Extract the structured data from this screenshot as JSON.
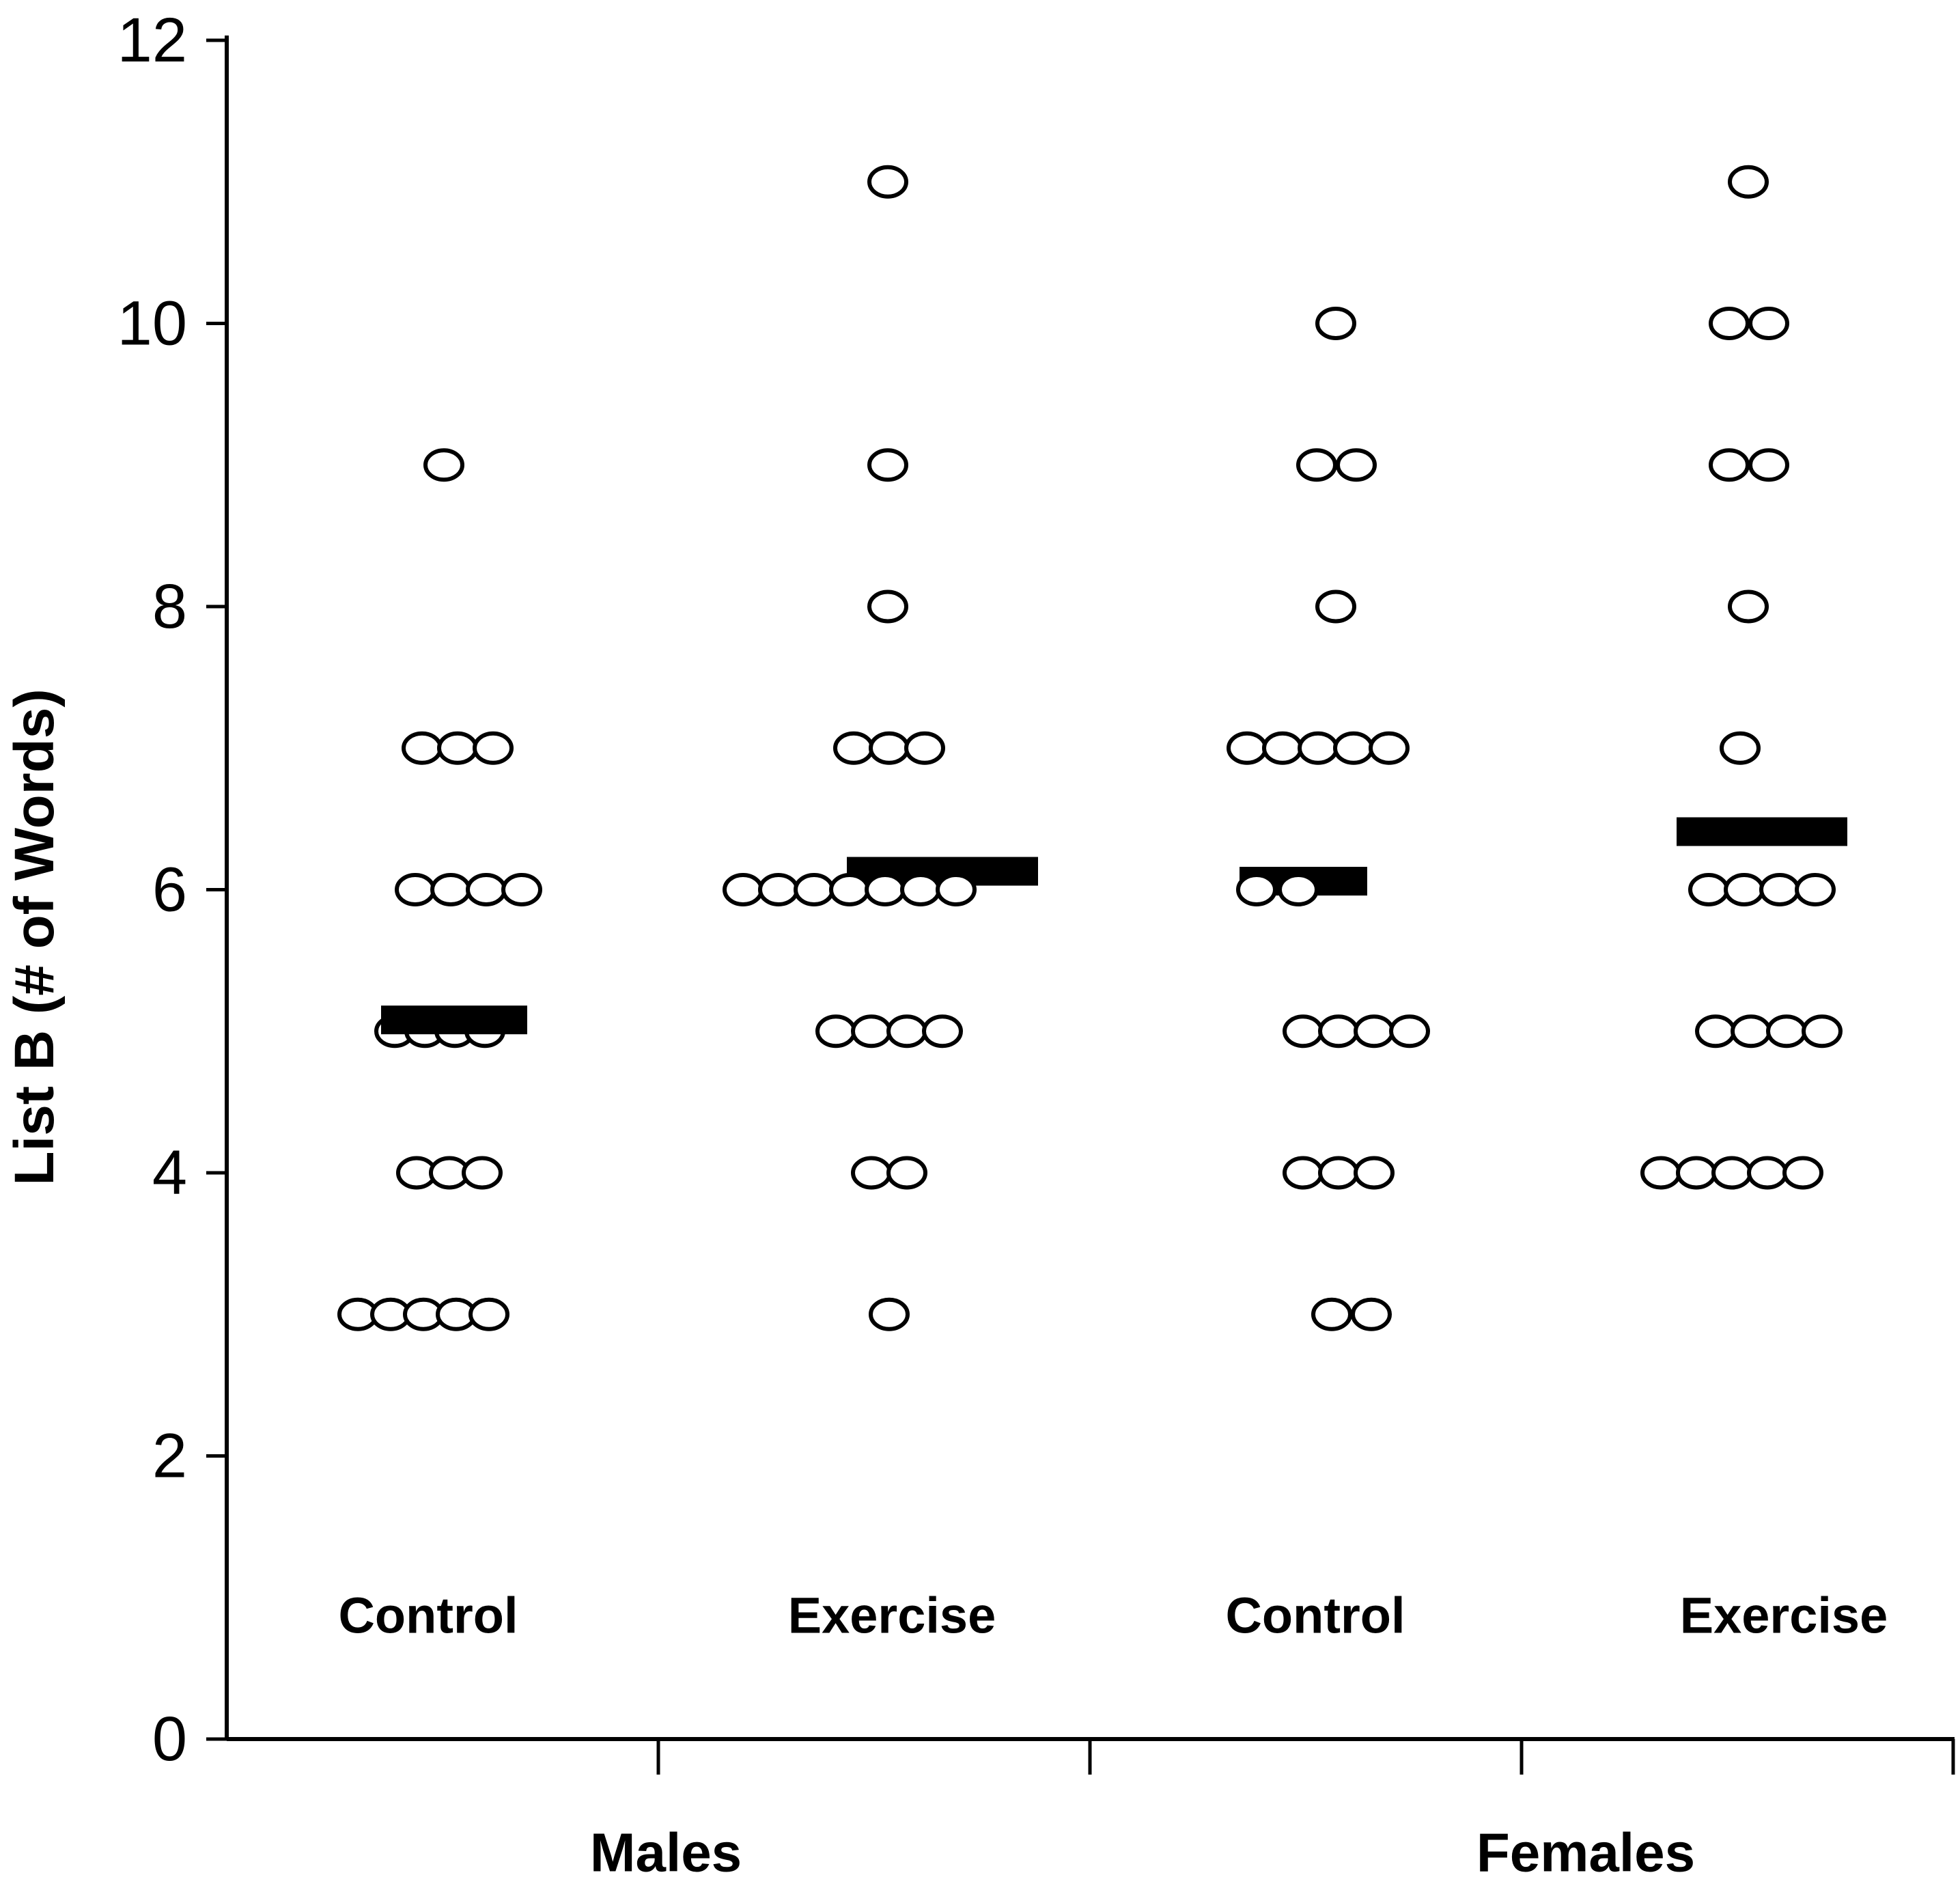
{
  "page": {
    "background": "#ffffff"
  },
  "chart_data": {
    "type": "scatter",
    "subtype": "dot-plot-with-mean-bars",
    "title": "",
    "xlabel": "",
    "ylabel": "List B (# of Words)",
    "ylim": [
      0,
      12
    ],
    "yticks": [
      0,
      2,
      4,
      6,
      8,
      10,
      12
    ],
    "grid": false,
    "legend": "none",
    "marker_style": {
      "shape": "open-circle",
      "stroke": "#000000",
      "fill": "#ffffff"
    },
    "mean_marker_style": {
      "shape": "horizontal-bar",
      "color": "#000000"
    },
    "sex_labels": [
      {
        "text": "Males",
        "x": 975
      },
      {
        "text": "Females",
        "x": 2322
      }
    ],
    "x_divider_ticks": [
      964,
      1596,
      2228,
      2860
    ],
    "groups": [
      {
        "sex": "Males",
        "condition": "Control",
        "label": "Control",
        "label_x": 627,
        "center_x": 650,
        "n": 20,
        "mean": 5.05,
        "values_flat": [
          9,
          7,
          7,
          7,
          6,
          6,
          6,
          6,
          5,
          5,
          5,
          5,
          4,
          4,
          4,
          3,
          3,
          3,
          3,
          3
        ],
        "mean_bar": {
          "value": 5.08,
          "x1": 558,
          "x2": 772,
          "over_points": true
        },
        "rows": [
          {
            "value": 9,
            "count": 1,
            "x_centers": [
              650
            ]
          },
          {
            "value": 7,
            "count": 3,
            "x_centers": [
              618,
              670,
              722
            ]
          },
          {
            "value": 6,
            "count": 4,
            "x_centers": [
              608,
              660,
              712,
              764
            ]
          },
          {
            "value": 5,
            "count": 4,
            "x_centers": [
              578,
              622,
              666,
              710
            ]
          },
          {
            "value": 4,
            "count": 3,
            "x_centers": [
              610,
              658,
              706
            ]
          },
          {
            "value": 3,
            "count": 5,
            "x_centers": [
              524,
              572,
              620,
              668,
              716
            ]
          }
        ]
      },
      {
        "sex": "Males",
        "condition": "Exercise",
        "label": "Exercise",
        "label_x": 1306,
        "center_x": 1300,
        "n": 20,
        "mean": 6.1,
        "values_flat": [
          11,
          9,
          8,
          7,
          7,
          7,
          6,
          6,
          6,
          6,
          6,
          6,
          6,
          5,
          5,
          5,
          5,
          4,
          4,
          3
        ],
        "mean_bar": {
          "value": 6.13,
          "x1": 1240,
          "x2": 1520,
          "over_points": false
        },
        "rows": [
          {
            "value": 11,
            "count": 1,
            "x_centers": [
              1300
            ]
          },
          {
            "value": 9,
            "count": 1,
            "x_centers": [
              1300
            ]
          },
          {
            "value": 8,
            "count": 1,
            "x_centers": [
              1300
            ]
          },
          {
            "value": 7,
            "count": 3,
            "x_centers": [
              1250,
              1302,
              1354
            ]
          },
          {
            "value": 6,
            "count": 7,
            "x_centers": [
              1088,
              1140,
              1192,
              1244,
              1296,
              1348,
              1400
            ]
          },
          {
            "value": 5,
            "count": 4,
            "x_centers": [
              1224,
              1276,
              1328,
              1380
            ]
          },
          {
            "value": 4,
            "count": 2,
            "x_centers": [
              1276,
              1328
            ]
          },
          {
            "value": 3,
            "count": 1,
            "x_centers": [
              1302
            ]
          }
        ]
      },
      {
        "sex": "Females",
        "condition": "Control",
        "label": "Control",
        "label_x": 1926,
        "center_x": 1956,
        "n": 20,
        "mean": 6.05,
        "values_flat": [
          10,
          9,
          9,
          8,
          7,
          7,
          7,
          7,
          7,
          6,
          6,
          5,
          5,
          5,
          5,
          4,
          4,
          4,
          3,
          3
        ],
        "mean_bar": {
          "value": 6.06,
          "x1": 1815,
          "x2": 2002,
          "over_points": false
        },
        "rows": [
          {
            "value": 10,
            "count": 1,
            "x_centers": [
              1956
            ]
          },
          {
            "value": 9,
            "count": 2,
            "x_centers": [
              1928,
              1986
            ]
          },
          {
            "value": 8,
            "count": 1,
            "x_centers": [
              1956
            ]
          },
          {
            "value": 7,
            "count": 5,
            "x_centers": [
              1826,
              1878,
              1930,
              1982,
              2034
            ]
          },
          {
            "value": 6,
            "count": 2,
            "x_centers": [
              1840,
              1901
            ]
          },
          {
            "value": 5,
            "count": 4,
            "x_centers": [
              1908,
              1960,
              2012,
              2064
            ]
          },
          {
            "value": 4,
            "count": 3,
            "x_centers": [
              1908,
              1960,
              2012
            ]
          },
          {
            "value": 3,
            "count": 2,
            "x_centers": [
              1950,
              2008
            ]
          }
        ]
      },
      {
        "sex": "Females",
        "condition": "Exercise",
        "label": "Exercise",
        "label_x": 2612,
        "center_x": 2560,
        "n": 20,
        "mean": 6.4,
        "values_flat": [
          11,
          10,
          10,
          9,
          9,
          8,
          7,
          6,
          6,
          6,
          6,
          5,
          5,
          5,
          5,
          4,
          4,
          4,
          4,
          4
        ],
        "mean_bar": {
          "value": 6.41,
          "x1": 2455,
          "x2": 2705,
          "over_points": false
        },
        "rows": [
          {
            "value": 11,
            "count": 1,
            "x_centers": [
              2560
            ]
          },
          {
            "value": 10,
            "count": 2,
            "x_centers": [
              2532,
              2590
            ]
          },
          {
            "value": 9,
            "count": 2,
            "x_centers": [
              2532,
              2590
            ]
          },
          {
            "value": 8,
            "count": 1,
            "x_centers": [
              2560
            ]
          },
          {
            "value": 7,
            "count": 1,
            "x_centers": [
              2548
            ]
          },
          {
            "value": 6,
            "count": 4,
            "x_centers": [
              2502,
              2554,
              2606,
              2658
            ]
          },
          {
            "value": 5,
            "count": 4,
            "x_centers": [
              2512,
              2564,
              2616,
              2668
            ]
          },
          {
            "value": 4,
            "count": 5,
            "x_centers": [
              2432,
              2484,
              2536,
              2588,
              2640
            ]
          }
        ]
      }
    ]
  }
}
